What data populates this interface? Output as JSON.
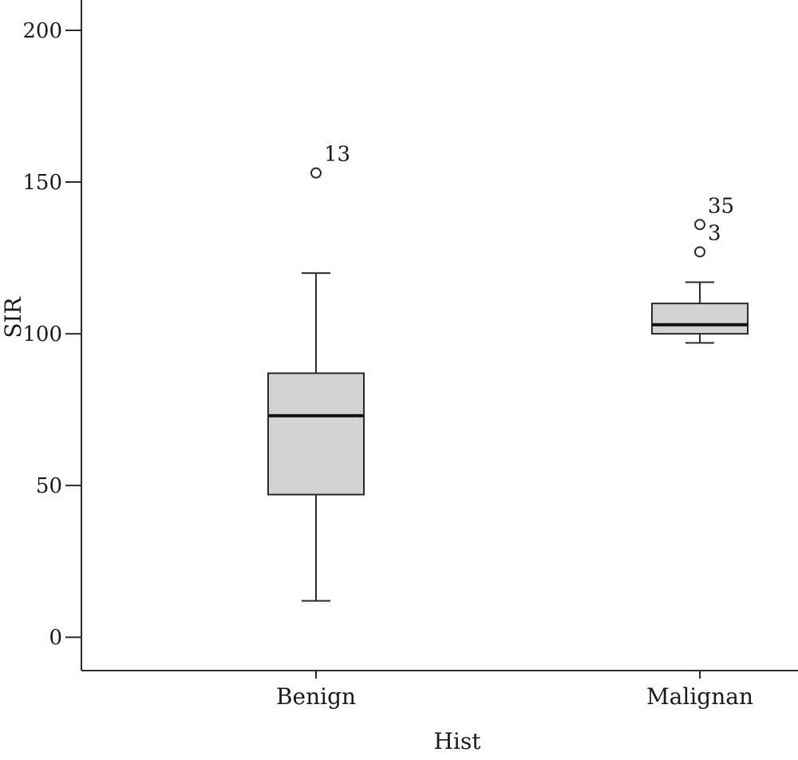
{
  "chart_data": {
    "type": "box",
    "xlabel": "Hist",
    "ylabel": "SIR",
    "ylim": [
      -11,
      210
    ],
    "yticks": [
      0,
      50,
      100,
      150,
      200
    ],
    "categories": [
      "Benign",
      "Malignan"
    ],
    "boxes": [
      {
        "category": "Benign",
        "whisker_low": 12,
        "q1": 47,
        "median": 73,
        "q3": 87,
        "whisker_high": 120,
        "outliers": [
          {
            "value": 153,
            "label": "13"
          }
        ]
      },
      {
        "category": "Malignan",
        "whisker_low": 97,
        "q1": 100,
        "median": 103,
        "q3": 110,
        "whisker_high": 117,
        "outliers": [
          {
            "value": 136,
            "label": "35"
          },
          {
            "value": 127,
            "label": "3"
          }
        ]
      }
    ],
    "colors": {
      "box_fill": "#d3d3d3",
      "stroke": "#2b2b2b"
    },
    "grid": false,
    "legend": "none"
  }
}
